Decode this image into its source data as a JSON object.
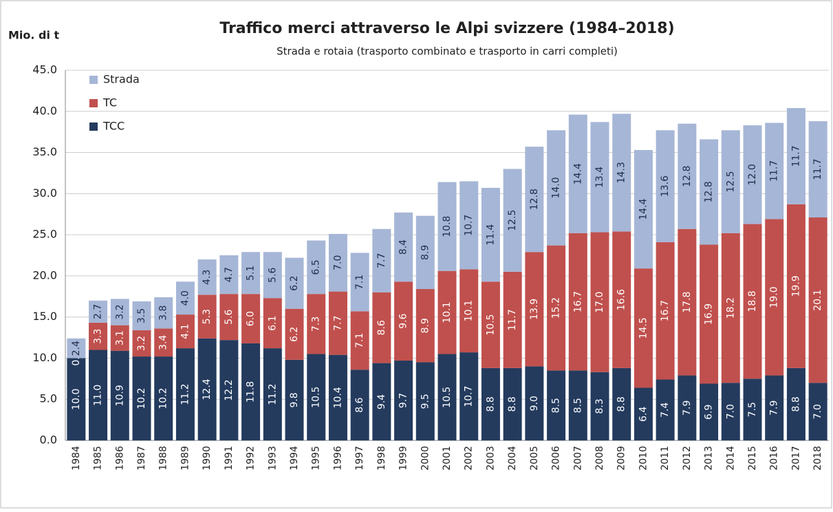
{
  "chart_data": {
    "type": "stacked_bar",
    "title": "Traffico merci attraverso le Alpi svizzere (1984–2018)",
    "subtitle": "Strada e rotaia (trasporto combinato e trasporto in carri completi)",
    "y_label": "Mio. di t",
    "categories": [
      "1984",
      "1985",
      "1986",
      "1987",
      "1988",
      "1989",
      "1990",
      "1991",
      "1992",
      "1993",
      "1994",
      "1995",
      "1996",
      "1997",
      "1998",
      "1999",
      "2000",
      "2001",
      "2002",
      "2003",
      "2004",
      "2005",
      "2006",
      "2007",
      "2008",
      "2009",
      "2010",
      "2011",
      "2012",
      "2013",
      "2014",
      "2015",
      "2016",
      "2017",
      "2018"
    ],
    "series": [
      {
        "name": "TCC",
        "color": "#243b5e",
        "values": [
          10.0,
          11.0,
          10.9,
          10.2,
          10.2,
          11.2,
          12.4,
          12.2,
          11.8,
          11.2,
          9.8,
          10.5,
          10.4,
          8.6,
          9.4,
          9.7,
          9.5,
          10.5,
          10.7,
          8.8,
          8.8,
          9.0,
          8.5,
          8.5,
          8.3,
          8.8,
          6.4,
          7.4,
          7.9,
          6.9,
          7.0,
          7.5,
          7.9,
          8.8,
          7.0
        ],
        "value_labels": [
          "10.0",
          "11.0",
          "10.9",
          "10.2",
          "10.2",
          "11.2",
          "12.4",
          "12.2",
          "11.8",
          "11.2",
          "9.8",
          "10.5",
          "10.4",
          "8.6",
          "9.4",
          "9.7",
          "9.5",
          "10.5",
          "10.7",
          "8.8",
          "8.8",
          "9.0",
          "8.5",
          "8.5",
          "8.3",
          "8.8",
          "6.4",
          "7.4",
          "7.9",
          "6.9",
          "7.0",
          "7.5",
          "7.9",
          "8.8",
          "7.0"
        ]
      },
      {
        "name": "TC",
        "color": "#c0504d",
        "values": [
          0.0,
          3.3,
          3.1,
          3.2,
          3.4,
          4.1,
          5.3,
          5.6,
          6.0,
          6.1,
          6.2,
          7.3,
          7.7,
          7.1,
          8.6,
          9.6,
          8.9,
          10.1,
          10.1,
          10.5,
          11.7,
          13.9,
          15.2,
          16.7,
          17.0,
          16.6,
          14.5,
          16.7,
          17.8,
          16.9,
          18.2,
          18.8,
          19.0,
          19.9,
          20.1
        ],
        "value_labels": [
          "0.0",
          "3.3",
          "3.1",
          "3.2",
          "3.4",
          "4.1",
          "5.3",
          "5.6",
          "6.0",
          "6.1",
          "6.2",
          "7.3",
          "7.7",
          "7.1",
          "8.6",
          "9.6",
          "8.9",
          "10.1",
          "10.1",
          "10.5",
          "11.7",
          "13.9",
          "15.2",
          "16.7",
          "17.0",
          "16.6",
          "14.5",
          "16.7",
          "17.8",
          "16.9",
          "18.2",
          "18.8",
          "19.0",
          "19.9",
          "20.1"
        ]
      },
      {
        "name": "Strada",
        "color": "#a6b6d6",
        "values": [
          2.4,
          2.7,
          3.2,
          3.5,
          3.8,
          4.0,
          4.3,
          4.7,
          5.1,
          5.6,
          6.2,
          6.5,
          7.0,
          7.1,
          7.7,
          8.4,
          8.9,
          10.8,
          10.7,
          11.4,
          12.5,
          12.8,
          14.0,
          14.4,
          13.4,
          14.3,
          14.4,
          13.6,
          12.8,
          12.8,
          12.5,
          12.0,
          11.7,
          11.7,
          11.7
        ],
        "value_labels": [
          "2.4",
          "2.7",
          "3.2",
          "3.5",
          "3.8",
          "4.0",
          "4.3",
          "4.7",
          "5.1",
          "5.6",
          "6.2",
          "6.5",
          "7.0",
          "7.1",
          "7.7",
          "8.4",
          "8.9",
          "10.8",
          "10.7",
          "11.4",
          "12.5",
          "12.8",
          "14.0",
          "14.4",
          "13.4",
          "14.3",
          "14.4",
          "13.6",
          "12.8",
          "12.8",
          "12.5",
          "12.0",
          "11.7",
          "11.7",
          "11.7"
        ]
      }
    ],
    "ylim": [
      0,
      45
    ],
    "yticks": [
      {
        "value": 0,
        "label": "0.0"
      },
      {
        "value": 5,
        "label": "5.0"
      },
      {
        "value": 10,
        "label": "10.0"
      },
      {
        "value": 15,
        "label": "15.0"
      },
      {
        "value": 20,
        "label": "20.0"
      },
      {
        "value": 25,
        "label": "25.0"
      },
      {
        "value": 30,
        "label": "30.0"
      },
      {
        "value": 35,
        "label": "35.0"
      },
      {
        "value": 40,
        "label": "40.0"
      },
      {
        "value": 45,
        "label": "45.0"
      }
    ],
    "grid": true,
    "legend": "top-left"
  }
}
